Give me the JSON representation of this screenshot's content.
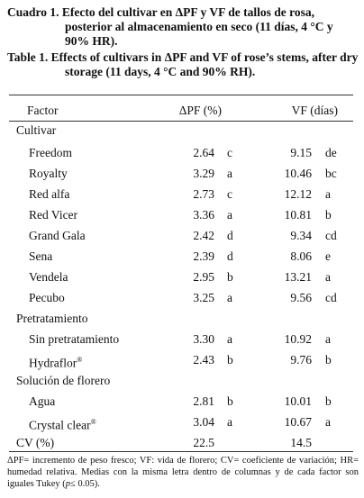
{
  "title_es": {
    "label": "Cuadro 1.",
    "text": "Efecto del cultivar en ΔPF y VF de tallos de rosa, posterior al almacenamiento en seco (11 días, 4 °C y 90% HR)."
  },
  "title_en": {
    "label": "Table 1.",
    "text": "Effects of cultivars in ΔPF and VF of rose’s stems, after dry storage (11 days, 4 °C and 90% RH)."
  },
  "table": {
    "header": [
      "Factor",
      "ΔPF (%)",
      "VF (días)"
    ],
    "groups": [
      {
        "name": "Cultivar",
        "rows": [
          {
            "label": "Freedom",
            "pf": "2.64",
            "pf_group": "c",
            "vf": "9.15",
            "vf_group": "de"
          },
          {
            "label": "Royalty",
            "pf": "3.29",
            "pf_group": "a",
            "vf": "10.46",
            "vf_group": "bc"
          },
          {
            "label": "Red alfa",
            "pf": "2.73",
            "pf_group": "c",
            "vf": "12.12",
            "vf_group": "a"
          },
          {
            "label": "Red Vicer",
            "pf": "3.36",
            "pf_group": "a",
            "vf": "10.81",
            "vf_group": "b"
          },
          {
            "label": "Grand Gala",
            "pf": "2.42",
            "pf_group": "d",
            "vf": "9.34",
            "vf_group": "cd"
          },
          {
            "label": "Sena",
            "pf": "2.39",
            "pf_group": "d",
            "vf": "8.06",
            "vf_group": "e"
          },
          {
            "label": "Vendela",
            "pf": "2.95",
            "pf_group": "b",
            "vf": "13.21",
            "vf_group": "a"
          },
          {
            "label": "Pecubo",
            "pf": "3.25",
            "pf_group": "a",
            "vf": "9.56",
            "vf_group": "cd"
          }
        ]
      },
      {
        "name": "Pretratamiento",
        "rows": [
          {
            "label": "Sin pretratamiento",
            "pf": "3.30",
            "pf_group": "a",
            "vf": "10.92",
            "vf_group": "a"
          },
          {
            "label": "Hydraflor",
            "sup": "®",
            "pf": "2.43",
            "pf_group": "b",
            "vf": "9.76",
            "vf_group": "b"
          }
        ]
      },
      {
        "name": "Solución de florero",
        "rows": [
          {
            "label": "Agua",
            "pf": "2.81",
            "pf_group": "b",
            "vf": "10.01",
            "vf_group": "b"
          },
          {
            "label": "Crystal clear",
            "sup": "®",
            "pf": "3.04",
            "pf_group": "a",
            "vf": "10.67",
            "vf_group": "a"
          }
        ]
      }
    ],
    "cv": {
      "label": "CV (%)",
      "pf": "22.5",
      "vf": "14.5"
    }
  },
  "footnote": {
    "before": "ΔPF= incremento de peso fresco; VF: vida de florero; CV= coeficiente de variación; HR= humedad relativa. Medias con la misma letra dentro de columnas y de cada factor son iguales Tukey (",
    "p": "p",
    "after": "≤ 0.05)."
  }
}
